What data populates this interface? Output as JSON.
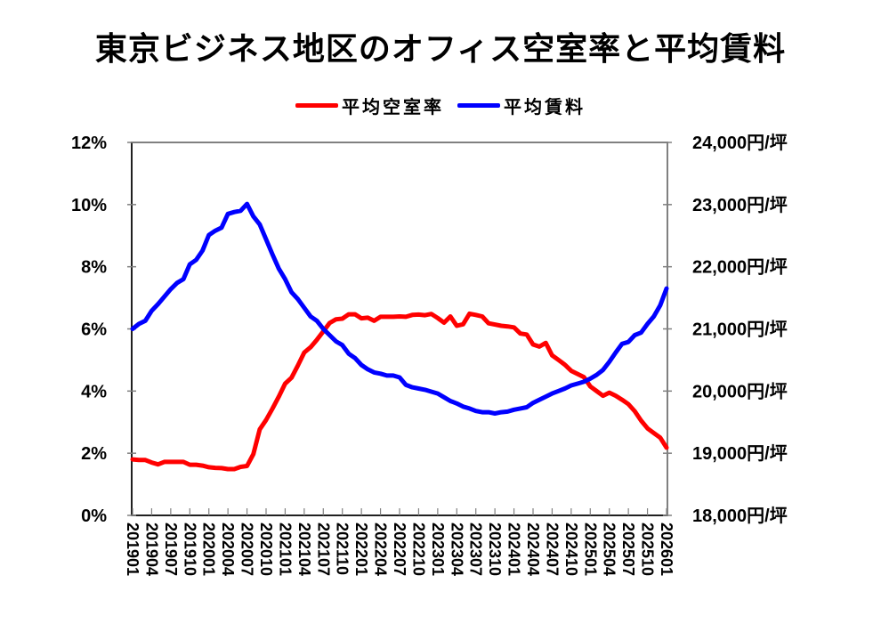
{
  "chart_data": {
    "type": "line",
    "title": "東京ビジネス地区のオフィス空室率と平均賃料",
    "legend_position": "top",
    "grid": false,
    "x_start": "201901",
    "x_end": "202601",
    "x_tick_labels": [
      "201901",
      "201904",
      "201907",
      "201910",
      "202001",
      "202004",
      "202007",
      "202010",
      "202101",
      "202104",
      "202107",
      "202110",
      "202201",
      "202204",
      "202207",
      "202210",
      "202301",
      "202304",
      "202307",
      "202310",
      "202401",
      "202404",
      "202407",
      "202410",
      "202501",
      "202504",
      "202507",
      "202510",
      "202601"
    ],
    "y_left": {
      "range": [
        0,
        12
      ],
      "ticks": [
        0,
        2,
        4,
        6,
        8,
        10,
        12
      ],
      "tick_labels": [
        "0%",
        "2%",
        "4%",
        "6%",
        "8%",
        "10%",
        "12%"
      ]
    },
    "y_right": {
      "range": [
        18000,
        24000
      ],
      "ticks": [
        18000,
        19000,
        20000,
        21000,
        22000,
        23000,
        24000
      ],
      "tick_labels": [
        "18,000円/坪",
        "19,000円/坪",
        "20,000円/坪",
        "21,000円/坪",
        "22,000円/坪",
        "23,000円/坪",
        "24,000円/坪"
      ]
    },
    "series": [
      {
        "name": "平均空室率",
        "axis": "left",
        "color": "#ff0000",
        "values": [
          1.8,
          1.78,
          1.78,
          1.7,
          1.64,
          1.72,
          1.72,
          1.72,
          1.72,
          1.63,
          1.63,
          1.6,
          1.55,
          1.53,
          1.52,
          1.49,
          1.49,
          1.56,
          1.59,
          1.97,
          2.77,
          3.07,
          3.43,
          3.82,
          4.24,
          4.43,
          4.82,
          5.24,
          5.41,
          5.65,
          5.92,
          6.19,
          6.31,
          6.33,
          6.47,
          6.47,
          6.34,
          6.36,
          6.26,
          6.39,
          6.39,
          6.39,
          6.4,
          6.39,
          6.45,
          6.46,
          6.44,
          6.48,
          6.35,
          6.2,
          6.4,
          6.1,
          6.15,
          6.49,
          6.45,
          6.4,
          6.18,
          6.14,
          6.1,
          6.08,
          6.05,
          5.85,
          5.82,
          5.5,
          5.43,
          5.55,
          5.15,
          5.0,
          4.85,
          4.65,
          4.55,
          4.45,
          4.15,
          4.0,
          3.85,
          3.95,
          3.85,
          3.72,
          3.58,
          3.35,
          3.05,
          2.8,
          2.65,
          2.5,
          2.18
        ]
      },
      {
        "name": "平均賃料",
        "axis": "right",
        "color": "#0000ff",
        "values": [
          21000,
          21080,
          21130,
          21290,
          21400,
          21520,
          21640,
          21740,
          21800,
          22040,
          22110,
          22260,
          22510,
          22580,
          22630,
          22850,
          22880,
          22900,
          23010,
          22810,
          22680,
          22440,
          22200,
          21970,
          21800,
          21590,
          21480,
          21340,
          21200,
          21130,
          21000,
          20900,
          20800,
          20740,
          20600,
          20530,
          20420,
          20350,
          20300,
          20280,
          20250,
          20250,
          20220,
          20100,
          20060,
          20040,
          20020,
          19990,
          19960,
          19900,
          19840,
          19800,
          19750,
          19720,
          19680,
          19660,
          19660,
          19640,
          19660,
          19670,
          19700,
          19720,
          19740,
          19810,
          19860,
          19910,
          19960,
          20000,
          20040,
          20090,
          20120,
          20150,
          20200,
          20260,
          20340,
          20470,
          20620,
          20760,
          20790,
          20900,
          20940,
          21080,
          21200,
          21380,
          21650
        ]
      }
    ]
  }
}
